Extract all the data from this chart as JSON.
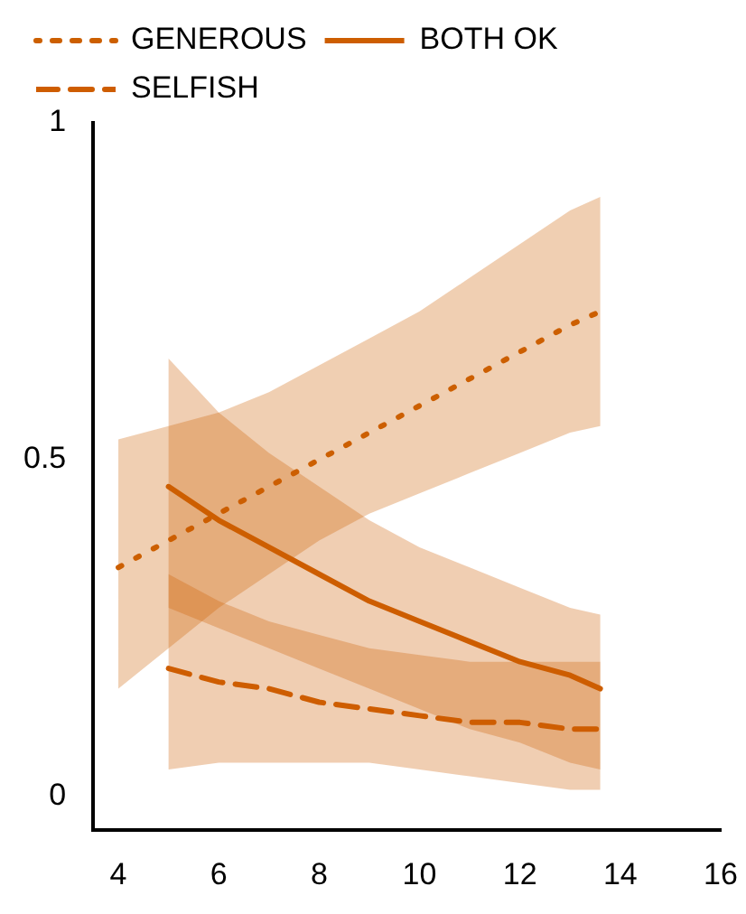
{
  "chart_data": {
    "type": "line",
    "xlim": [
      3.5,
      16
    ],
    "xticks": [
      4,
      6,
      8,
      10,
      12,
      14,
      16
    ],
    "ylim": [
      -0.05,
      1
    ],
    "yticks": [
      0,
      0.5,
      1
    ],
    "grid": false,
    "legend": "top left",
    "marker": "none",
    "series": [
      {
        "name": "GENEROUS",
        "color": "#cc5f00",
        "line_style": "dotted",
        "x": [
          4,
          5,
          6,
          7,
          8,
          9,
          10,
          11,
          12,
          13,
          13.6
        ],
        "values": [
          0.34,
          0.38,
          0.42,
          0.46,
          0.5,
          0.54,
          0.58,
          0.62,
          0.66,
          0.7,
          0.72
        ],
        "lower": [
          0.16,
          0.22,
          0.28,
          0.33,
          0.38,
          0.42,
          0.45,
          0.48,
          0.51,
          0.54,
          0.55
        ],
        "upper": [
          0.53,
          0.55,
          0.57,
          0.6,
          0.64,
          0.68,
          0.72,
          0.77,
          0.82,
          0.87,
          0.89
        ]
      },
      {
        "name": "BOTH OK",
        "color": "#cd5e00",
        "line_style": "solid",
        "x": [
          5,
          6,
          7,
          8,
          9,
          10,
          11,
          12,
          13,
          13.6
        ],
        "values": [
          0.46,
          0.41,
          0.37,
          0.33,
          0.29,
          0.26,
          0.23,
          0.2,
          0.18,
          0.16
        ],
        "lower": [
          0.28,
          0.25,
          0.22,
          0.19,
          0.16,
          0.13,
          0.1,
          0.08,
          0.05,
          0.04
        ],
        "upper": [
          0.65,
          0.57,
          0.51,
          0.46,
          0.41,
          0.37,
          0.34,
          0.31,
          0.28,
          0.27
        ]
      },
      {
        "name": "SELFISH",
        "color": "#ce5d00",
        "line_style": "dashed",
        "x": [
          5,
          6,
          7,
          8,
          9,
          10,
          11,
          12,
          13,
          13.6
        ],
        "values": [
          0.19,
          0.17,
          0.16,
          0.14,
          0.13,
          0.12,
          0.11,
          0.11,
          0.1,
          0.1
        ],
        "lower": [
          0.04,
          0.05,
          0.05,
          0.05,
          0.05,
          0.04,
          0.03,
          0.02,
          0.01,
          0.01
        ],
        "upper": [
          0.33,
          0.29,
          0.26,
          0.24,
          0.22,
          0.21,
          0.2,
          0.2,
          0.2,
          0.2
        ]
      }
    ]
  }
}
